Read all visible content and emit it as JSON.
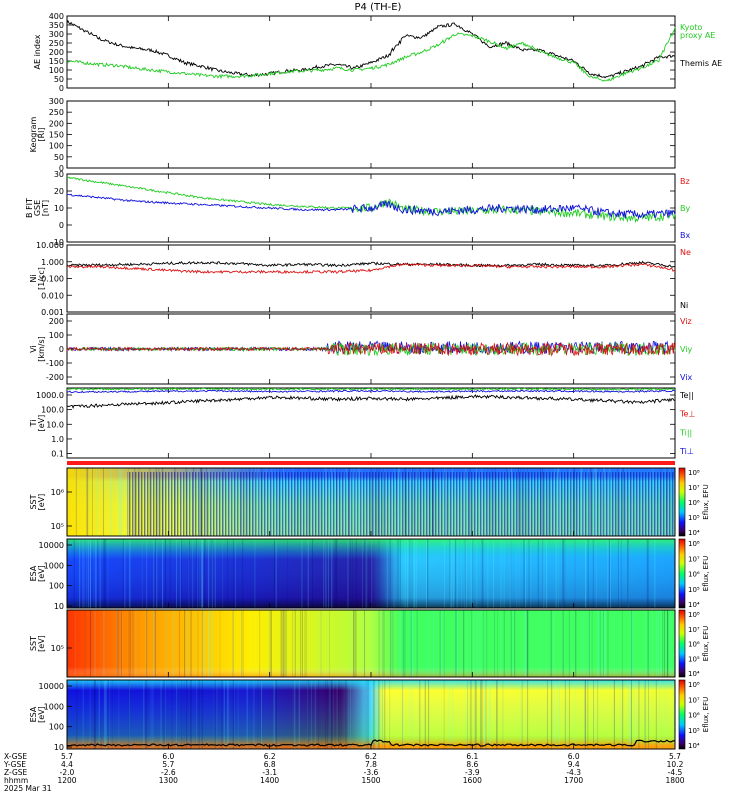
{
  "title": "P4  (TH-E)",
  "colors": {
    "kyoto": "#22cc22",
    "themis": "#000000",
    "red": "#dd1111",
    "green": "#22cc22",
    "blue": "#1111dd",
    "black": "#000000"
  },
  "colorbar_label": "Eflux, EFU",
  "chart_data": [
    {
      "type": "line",
      "panel": "AE index",
      "ylabel": "AE index",
      "ylim": [
        0,
        400
      ],
      "yticks": [
        "0",
        "50",
        "100",
        "150",
        "200",
        "250",
        "300",
        "350",
        "400"
      ],
      "legend": [
        {
          "text": "Kyoto",
          "color": "#22cc22"
        },
        {
          "text": "proxy AE",
          "color": "#22cc22"
        },
        {
          "text": "Themis AE",
          "color": "#000000"
        }
      ],
      "series": [
        {
          "name": "Themis AE",
          "color": "#000000",
          "x": [
            1200,
            1210,
            1220,
            1230,
            1240,
            1250,
            1300,
            1310,
            1320,
            1330,
            1340,
            1350,
            1400,
            1410,
            1420,
            1430,
            1440,
            1450,
            1500,
            1510,
            1520,
            1530,
            1540,
            1550,
            1600,
            1610,
            1620,
            1630,
            1640,
            1650,
            1700,
            1710,
            1720,
            1730,
            1740,
            1750,
            1800
          ],
          "y": [
            370,
            320,
            270,
            240,
            220,
            210,
            180,
            140,
            120,
            95,
            80,
            70,
            80,
            95,
            100,
            120,
            130,
            110,
            140,
            180,
            290,
            280,
            340,
            355,
            300,
            230,
            250,
            210,
            210,
            180,
            150,
            80,
            60,
            90,
            120,
            170,
            180
          ]
        },
        {
          "name": "Kyoto proxy AE",
          "color": "#22cc22",
          "x": [
            1200,
            1210,
            1220,
            1230,
            1240,
            1250,
            1300,
            1310,
            1320,
            1330,
            1340,
            1350,
            1400,
            1410,
            1420,
            1430,
            1440,
            1450,
            1500,
            1510,
            1520,
            1530,
            1540,
            1550,
            1600,
            1610,
            1620,
            1630,
            1640,
            1650,
            1700,
            1710,
            1720,
            1730,
            1740,
            1750,
            1800
          ],
          "y": [
            150,
            140,
            130,
            125,
            110,
            100,
            90,
            80,
            70,
            65,
            65,
            70,
            80,
            90,
            95,
            100,
            110,
            100,
            110,
            130,
            170,
            200,
            240,
            300,
            290,
            260,
            220,
            250,
            200,
            170,
            140,
            60,
            40,
            80,
            110,
            150,
            330
          ]
        }
      ]
    },
    {
      "type": "line",
      "panel": "Keogram",
      "ylabel": "Keogram",
      "ylabel2": "[Rl]",
      "ylim": [
        0,
        300
      ],
      "yticks": [
        "0",
        "50",
        "100",
        "150",
        "200",
        "250",
        "300"
      ],
      "series": []
    },
    {
      "type": "line",
      "panel": "B FIT GSE",
      "ylabel": "B FIT",
      "ylabel2": "GSE",
      "ylabel3": "[nT]",
      "ylim": [
        -10,
        30
      ],
      "yticks": [
        "-10",
        "0",
        "10",
        "20",
        "30"
      ],
      "legend": [
        {
          "text": "Bz",
          "color": "#dd1111"
        },
        {
          "text": "By",
          "color": "#22cc22"
        },
        {
          "text": "Bx",
          "color": "#1111dd"
        }
      ],
      "series": [
        {
          "name": "By",
          "color": "#22cc22",
          "x": [
            1200,
            1220,
            1240,
            1300,
            1320,
            1340,
            1400,
            1420,
            1440,
            1500,
            1510,
            1520,
            1540,
            1600,
            1620,
            1640,
            1700,
            1720,
            1740,
            1800
          ],
          "y": [
            28,
            25,
            22,
            19,
            16,
            14,
            12,
            11,
            10,
            10,
            14,
            9,
            8,
            8,
            9,
            8,
            7,
            5,
            4,
            6
          ]
        },
        {
          "name": "Bx",
          "color": "#1111dd",
          "x": [
            1200,
            1220,
            1240,
            1300,
            1320,
            1340,
            1400,
            1420,
            1440,
            1500,
            1510,
            1520,
            1540,
            1600,
            1620,
            1640,
            1700,
            1720,
            1740,
            1800
          ],
          "y": [
            18,
            16,
            14,
            13,
            12,
            11,
            10,
            9,
            9,
            10,
            12,
            9,
            8,
            9,
            10,
            9,
            10,
            7,
            6,
            7
          ]
        }
      ]
    },
    {
      "type": "line",
      "panel": "Ni Ne",
      "ylabel": "Ni",
      "ylabel2": "[1/cc]",
      "scale": "log",
      "ylim": [
        0.001,
        10
      ],
      "yticks": [
        "0.001",
        "0.010",
        "0.100",
        "1.000",
        "10.000"
      ],
      "legend": [
        {
          "text": "Ne",
          "color": "#dd1111"
        },
        {
          "text": "Ni",
          "color": "#000000"
        }
      ],
      "series": [
        {
          "name": "Ni",
          "color": "#000000",
          "x": [
            1200,
            1220,
            1240,
            1300,
            1320,
            1340,
            1400,
            1420,
            1440,
            1500,
            1520,
            1540,
            1600,
            1620,
            1640,
            1700,
            1720,
            1740,
            1800
          ],
          "y": [
            0.6,
            0.65,
            0.7,
            0.8,
            0.9,
            0.8,
            0.6,
            0.7,
            0.6,
            0.8,
            0.7,
            0.7,
            0.6,
            0.6,
            0.7,
            0.6,
            0.6,
            0.9,
            0.5
          ]
        },
        {
          "name": "Ne",
          "color": "#dd1111",
          "x": [
            1200,
            1220,
            1240,
            1300,
            1320,
            1340,
            1400,
            1420,
            1440,
            1500,
            1520,
            1540,
            1600,
            1620,
            1640,
            1700,
            1720,
            1740,
            1800
          ],
          "y": [
            0.5,
            0.5,
            0.4,
            0.3,
            0.25,
            0.25,
            0.25,
            0.25,
            0.25,
            0.3,
            0.7,
            0.6,
            0.6,
            0.5,
            0.5,
            0.5,
            0.5,
            0.7,
            0.3
          ]
        }
      ]
    },
    {
      "type": "line",
      "panel": "Vi",
      "ylabel": "Vi",
      "ylabel2": "[km/s]",
      "ylim": [
        -250,
        250
      ],
      "yticks": [
        "-200",
        "-100",
        "0",
        "100",
        "200"
      ],
      "legend": [
        {
          "text": "Viz",
          "color": "#dd1111"
        },
        {
          "text": "Viy",
          "color": "#22cc22"
        },
        {
          "text": "Vix",
          "color": "#1111dd"
        }
      ],
      "series": []
    },
    {
      "type": "line",
      "panel": "Ti Te",
      "ylabel": "Ti",
      "ylabel2": "[eV]",
      "scale": "log",
      "ylim": [
        0.05,
        3000
      ],
      "yticks": [
        "0.1",
        "1.0",
        "10.0",
        "100.0",
        "1000.0"
      ],
      "legend": [
        {
          "text": "Te||",
          "color": "#000000"
        },
        {
          "text": "Te⊥",
          "color": "#dd1111"
        },
        {
          "text": "Ti||",
          "color": "#22cc22"
        },
        {
          "text": "Ti⊥",
          "color": "#1111dd"
        }
      ],
      "series": [
        {
          "name": "Ti||",
          "color": "#22cc22",
          "x": [
            1200,
            1230,
            1300,
            1330,
            1400,
            1430,
            1500,
            1530,
            1600,
            1630,
            1700,
            1730,
            1800
          ],
          "y": [
            2500,
            2500,
            2600,
            2600,
            2500,
            2500,
            2600,
            2500,
            2500,
            2600,
            2500,
            2400,
            2600
          ]
        },
        {
          "name": "Ti⊥",
          "color": "#1111dd",
          "x": [
            1200,
            1230,
            1300,
            1330,
            1400,
            1430,
            1500,
            1530,
            1600,
            1630,
            1700,
            1730,
            1800
          ],
          "y": [
            1600,
            1700,
            1800,
            1900,
            1700,
            1800,
            1900,
            1700,
            1800,
            1900,
            1800,
            1700,
            1900
          ]
        },
        {
          "name": "Te||",
          "color": "#000000",
          "x": [
            1200,
            1220,
            1240,
            1300,
            1320,
            1340,
            1400,
            1420,
            1440,
            1500,
            1520,
            1540,
            1600,
            1620,
            1640,
            1700,
            1720,
            1740,
            1800
          ],
          "y": [
            150,
            200,
            250,
            300,
            400,
            500,
            700,
            600,
            500,
            600,
            500,
            600,
            800,
            700,
            600,
            500,
            400,
            300,
            500
          ]
        }
      ]
    },
    {
      "type": "heatmap",
      "panel": "SST ion",
      "ylabel": "SST",
      "ylabel2": "[eV]",
      "yticks": [
        "10⁵",
        "10⁶"
      ]
    },
    {
      "type": "heatmap",
      "panel": "ESA ion",
      "ylabel": "ESA",
      "ylabel2": "[eV]",
      "yticks": [
        "10",
        "100",
        "1000",
        "10000"
      ]
    },
    {
      "type": "heatmap",
      "panel": "SST electron",
      "ylabel": "SST",
      "ylabel2": "[eV]",
      "yticks": [
        "10⁵"
      ]
    },
    {
      "type": "heatmap",
      "panel": "ESA electron",
      "ylabel": "ESA",
      "ylabel2": "[eV]",
      "yticks": [
        "10",
        "100",
        "1000",
        "10000"
      ]
    }
  ],
  "colorbars": [
    {
      "ticks": [
        "10⁴",
        "10⁵",
        "10⁶",
        "10⁷",
        "10⁸"
      ]
    },
    {
      "ticks": [
        "10⁴",
        "10⁵",
        "10⁶",
        "10⁷",
        "10⁸"
      ]
    },
    {
      "ticks": [
        "10⁴",
        "10⁵",
        "10⁶",
        "10⁷",
        "10⁸"
      ]
    },
    {
      "ticks": [
        "10⁴",
        "10⁵",
        "10⁶",
        "10⁷",
        "10⁸"
      ]
    }
  ],
  "xaxis": {
    "row_labels": [
      "X-GSE",
      "Y-GSE",
      "Z-GSE",
      "hhmm",
      "2025 Mar 31"
    ],
    "ticks": [
      {
        "x": "5.7",
        "y": "4.4",
        "z": "-2.0",
        "t": "1200"
      },
      {
        "x": "6.0",
        "y": "5.7",
        "z": "-2.6",
        "t": "1300"
      },
      {
        "x": "6.2",
        "y": "6.8",
        "z": "-3.1",
        "t": "1400"
      },
      {
        "x": "6.2",
        "y": "7.8",
        "z": "-3.6",
        "t": "1500"
      },
      {
        "x": "6.1",
        "y": "8.6",
        "z": "-3.9",
        "t": "1600"
      },
      {
        "x": "6.0",
        "y": "9.4",
        "z": "-4.3",
        "t": "1700"
      },
      {
        "x": "5.7",
        "y": "10.2",
        "z": "-4.5",
        "t": "1800"
      }
    ]
  }
}
